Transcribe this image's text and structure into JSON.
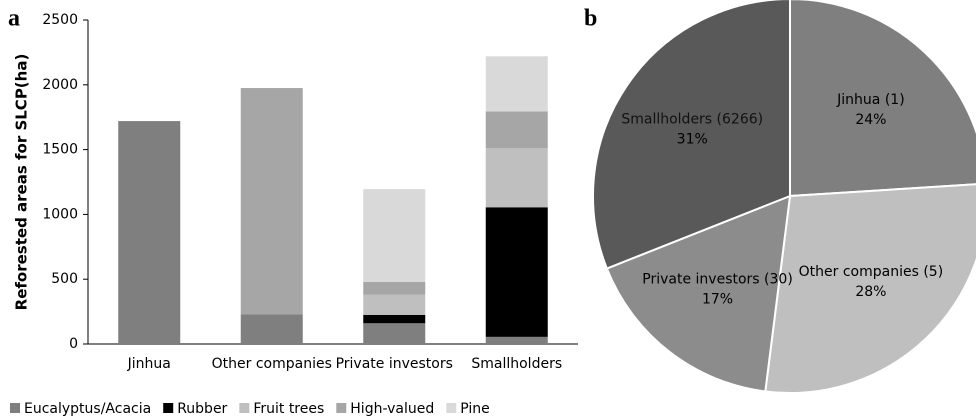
{
  "chart_data": [
    {
      "type": "bar",
      "stacked": true,
      "panel": "a",
      "y_label": "Reforested areas for SLCP(ha)",
      "categories": [
        "Jinhua",
        "Other companies",
        "Private investors",
        "Smallholders"
      ],
      "series": [
        {
          "name": "Eucalyptus/Acacia",
          "color": "#7f7f7f",
          "values": [
            1720,
            230,
            160,
            55
          ]
        },
        {
          "name": "Rubber",
          "color": "#000000",
          "values": [
            0,
            0,
            65,
            1000
          ]
        },
        {
          "name": "Fruit trees",
          "color": "#bfbfbf",
          "values": [
            0,
            0,
            155,
            455
          ]
        },
        {
          "name": "High-valued",
          "color": "#a6a6a6",
          "values": [
            0,
            1745,
            100,
            285
          ]
        },
        {
          "name": "Pine",
          "color": "#d9d9d9",
          "values": [
            0,
            0,
            715,
            425
          ]
        }
      ],
      "ylim": [
        0,
        2500
      ],
      "yticks": [
        0,
        500,
        1000,
        1500,
        2000,
        2500
      ],
      "legend": "bottom"
    },
    {
      "type": "pie",
      "panel": "b",
      "categories": [
        "Jinhua (1)",
        "Other companies (5)",
        "Private investors (30)",
        "Smallholders (6266)"
      ],
      "values": [
        24,
        28,
        17,
        31
      ],
      "value_labels": [
        "24%",
        "28%",
        "17%",
        "31%"
      ],
      "colors": [
        "#7f7f7f",
        "#bfbfbf",
        "#8c8c8c",
        "#595959"
      ]
    }
  ]
}
